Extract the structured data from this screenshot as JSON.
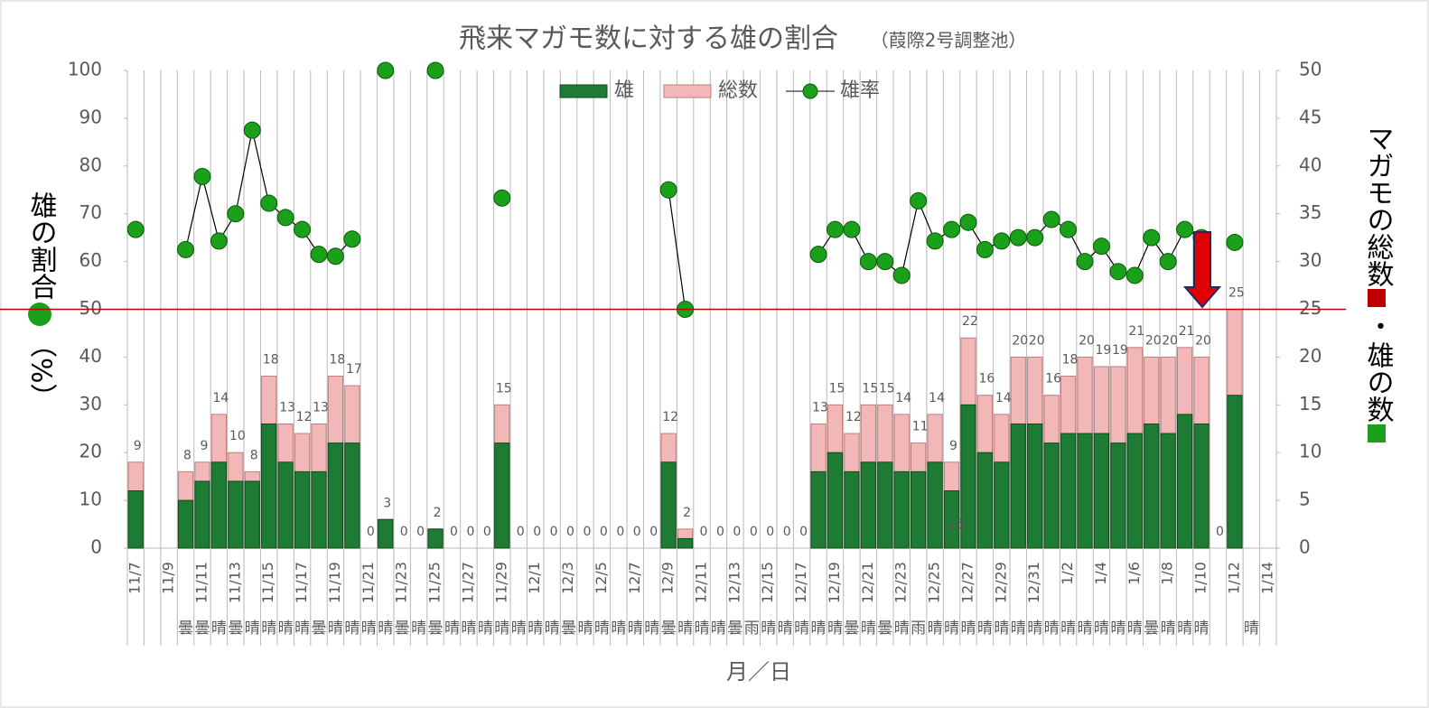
{
  "chart_data": {
    "type": "bar",
    "title": "飛来マガモ数に対する雄の割合",
    "subtitle": "（葭際2号調整池）",
    "x_label": "月／日",
    "y_label": [
      "雄の割合",
      "（%）"
    ],
    "y2_label": [
      "マガモの総数",
      "・",
      "雄の数"
    ],
    "categories": [
      "11/7",
      null,
      "11/9",
      null,
      "11/11",
      null,
      "11/13",
      null,
      "11/15",
      null,
      "11/17",
      null,
      "11/19",
      null,
      "11/21",
      null,
      "11/23",
      null,
      "11/25",
      null,
      "11/27",
      null,
      "11/29",
      null,
      "12/1",
      null,
      "12/3",
      null,
      "12/5",
      null,
      "12/7",
      null,
      "12/9",
      null,
      "12/11",
      null,
      "12/13",
      null,
      "12/15",
      null,
      "12/17",
      null,
      "12/19",
      null,
      "12/21",
      null,
      "12/23",
      null,
      "12/25",
      null,
      "12/27",
      null,
      "12/29",
      null,
      "12/31",
      null,
      "1/2",
      null,
      "1/4",
      null,
      "1/6",
      null,
      "1/8",
      null,
      "1/10",
      null,
      "1/12",
      null,
      "1/14"
    ],
    "weather": [
      null,
      null,
      null,
      "曇",
      "曇",
      "晴",
      "曇",
      "晴",
      "晴",
      "晴",
      "晴",
      "曇",
      "晴",
      "晴",
      "晴",
      "晴",
      "曇",
      "晴",
      "曇",
      "晴",
      "晴",
      "晴",
      "晴",
      "晴",
      "晴",
      "晴",
      "曇",
      "晴",
      "晴",
      "晴",
      "晴",
      "晴",
      "曇",
      "晴",
      "晴",
      "晴",
      "曇",
      "雨",
      "晴",
      "晴",
      "晴",
      "晴",
      "晴",
      "曇",
      "晴",
      "曇",
      "晴",
      "雨",
      "晴",
      "晴",
      "晴",
      "晴",
      "晴",
      "晴",
      "晴",
      "晴",
      "晴",
      "晴",
      "晴",
      "晴",
      "晴",
      "曇",
      "晴",
      "晴",
      "晴",
      null,
      null,
      "晴",
      null
    ],
    "ylim": [
      0,
      100
    ],
    "yticks": [
      0,
      10,
      20,
      30,
      40,
      50,
      60,
      70,
      80,
      90,
      100
    ],
    "y2lim": [
      0,
      50
    ],
    "y2ticks": [
      0,
      5,
      10,
      15,
      20,
      25,
      30,
      35,
      40,
      45,
      50
    ],
    "grid": "x",
    "series": [
      {
        "name": "雄",
        "type": "bar",
        "axis": "y2",
        "color": "#1e7b34",
        "values": [
          6,
          null,
          null,
          5,
          7,
          9,
          7,
          7,
          13,
          9,
          8,
          8,
          11,
          11,
          0,
          3,
          0,
          0,
          2,
          0,
          0,
          0,
          11,
          0,
          0,
          0,
          0,
          0,
          0,
          0,
          0,
          0,
          9,
          1,
          0,
          0,
          0,
          0,
          0,
          0,
          0,
          8,
          10,
          8,
          9,
          9,
          8,
          8,
          9,
          6,
          15,
          10,
          9,
          13,
          13,
          11,
          12,
          12,
          12,
          11,
          12,
          13,
          12,
          14,
          13,
          0,
          16,
          null,
          null
        ]
      },
      {
        "name": "総数",
        "type": "bar",
        "axis": "y2",
        "color": "#f2b8b8",
        "values": [
          9,
          null,
          null,
          8,
          9,
          14,
          10,
          8,
          18,
          13,
          12,
          13,
          18,
          17,
          0,
          3,
          0,
          0,
          2,
          0,
          0,
          0,
          15,
          0,
          0,
          0,
          0,
          0,
          0,
          0,
          0,
          0,
          12,
          2,
          0,
          0,
          0,
          0,
          0,
          0,
          0,
          13,
          15,
          12,
          15,
          15,
          14,
          11,
          14,
          9,
          22,
          16,
          14,
          20,
          20,
          16,
          18,
          20,
          19,
          19,
          21,
          20,
          20,
          21,
          20,
          0,
          25,
          null,
          null
        ]
      },
      {
        "name": "雄率",
        "type": "line",
        "axis": "y",
        "color": "#000000",
        "marker_color": "#1aa01a",
        "values": [
          66.7,
          null,
          null,
          62.5,
          77.8,
          64.3,
          70,
          87.5,
          72.2,
          69.2,
          66.7,
          61.5,
          61.1,
          64.7,
          null,
          100,
          null,
          null,
          100,
          null,
          null,
          null,
          73.3,
          null,
          null,
          null,
          null,
          null,
          null,
          null,
          null,
          null,
          75,
          50,
          null,
          null,
          null,
          null,
          null,
          null,
          null,
          61.5,
          66.7,
          66.7,
          60,
          60,
          57.1,
          72.7,
          64.3,
          66.7,
          68.2,
          62.5,
          64.3,
          65,
          65,
          68.8,
          66.7,
          60,
          63.2,
          57.9,
          57.1,
          65,
          60,
          66.7,
          65,
          null,
          64,
          null,
          null
        ]
      }
    ],
    "reference_line": {
      "value": 50,
      "color": "#c00000"
    },
    "annotation": "15"
  }
}
